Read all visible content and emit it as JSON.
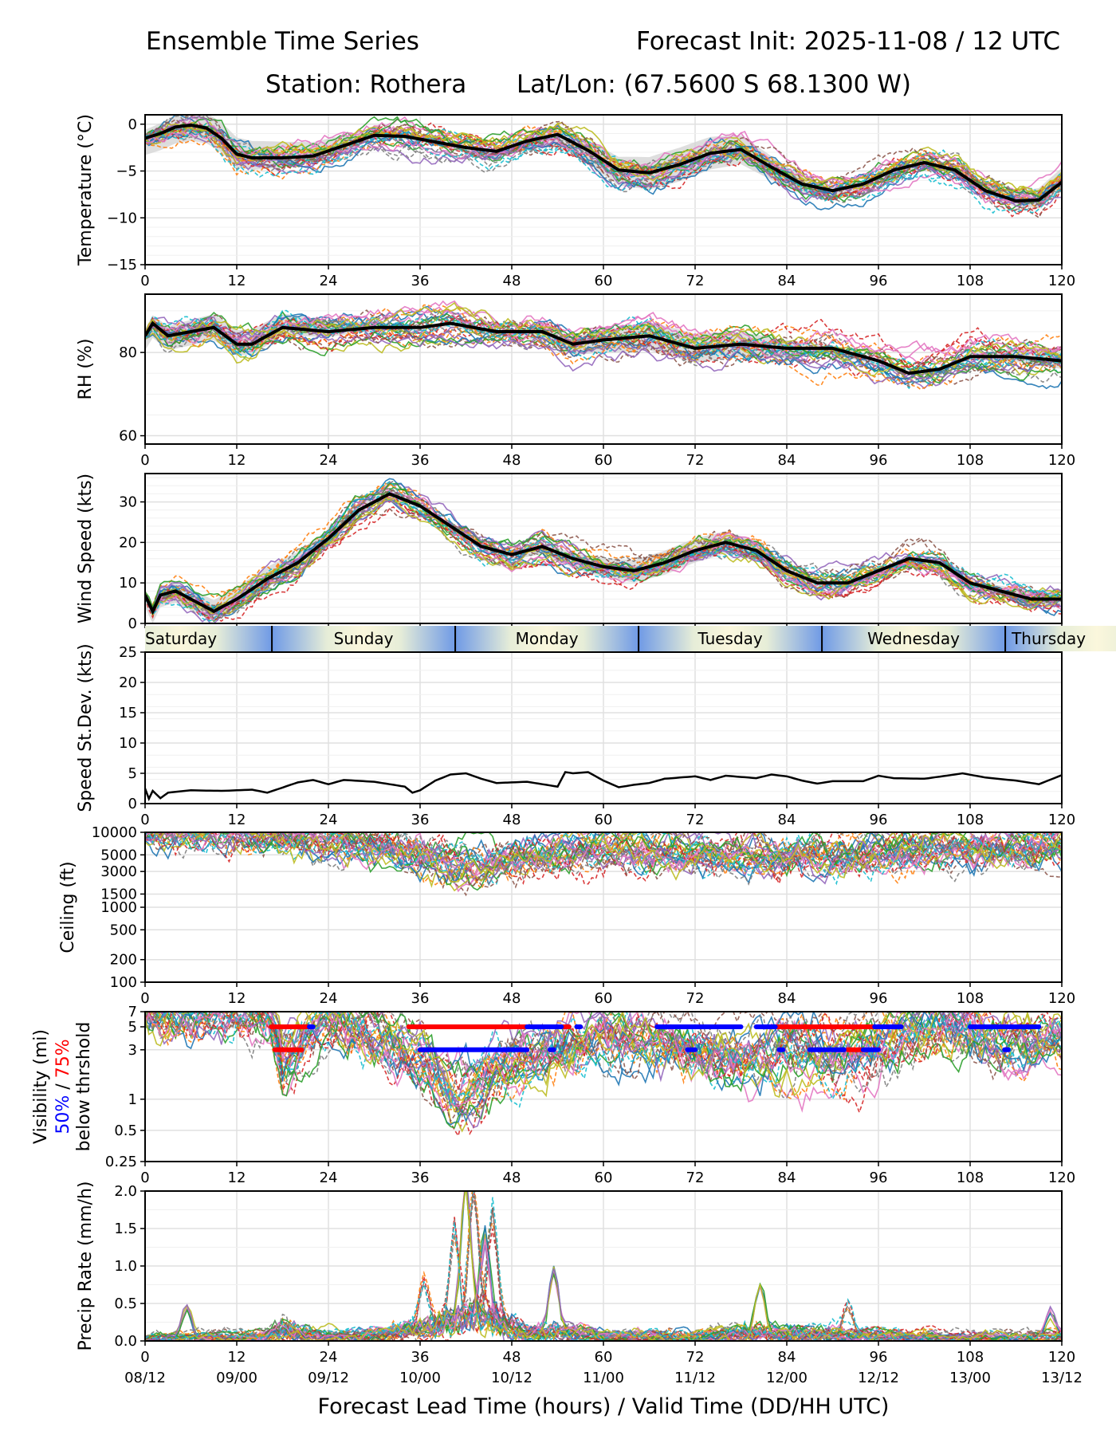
{
  "header": {
    "left_title": "Ensemble Time Series",
    "right_title": "Forecast Init: 2025-11-08 / 12 UTC",
    "station": "Station: Rothera",
    "latlon": "Lat/Lon: (67.5600 S 68.1300 W)"
  },
  "colors": {
    "members": [
      "#1f77b4",
      "#ff7f0e",
      "#2ca02c",
      "#d62728",
      "#9467bd",
      "#8c564b",
      "#e377c2",
      "#7f7f7f",
      "#bcbd22",
      "#17becf"
    ],
    "mean": "#000000",
    "spread": "#d3d3d3",
    "vis_50": "#0000ff",
    "vis_75": "#ff0000"
  },
  "chart_data": {
    "type": "line",
    "x_label": "Forecast Lead Time (hours) / Valid Time (DD/HH UTC)",
    "x_range": [
      0,
      120
    ],
    "x_ticks": [
      0,
      12,
      24,
      36,
      48,
      60,
      72,
      84,
      96,
      108,
      120
    ],
    "x_valid_labels": [
      "08/12",
      "09/00",
      "09/12",
      "10/00",
      "10/12",
      "11/00",
      "11/12",
      "12/00",
      "12/12",
      "13/00",
      "13/12"
    ],
    "members": 30,
    "day_band": {
      "days": [
        "Saturday",
        "Sunday",
        "Monday",
        "Tuesday",
        "Wednesday",
        "Thursday"
      ],
      "boundaries_hours": [
        16.6,
        40.6,
        64.6,
        88.6,
        112.6
      ]
    },
    "panels": [
      {
        "id": "temperature",
        "ylabel": "Temperature (°C)",
        "ylim": [
          -15,
          1
        ],
        "yscale": "linear",
        "yticks": [
          0,
          -5,
          -10,
          -15
        ],
        "ytick_labels": [
          "0",
          "−5",
          "−10",
          "−15"
        ],
        "mean": [
          [
            0,
            -1.5
          ],
          [
            2,
            -1
          ],
          [
            4,
            -0.3
          ],
          [
            6,
            -0.1
          ],
          [
            8,
            -0.4
          ],
          [
            10,
            -1.5
          ],
          [
            12,
            -3.2
          ],
          [
            14,
            -3.6
          ],
          [
            18,
            -3.6
          ],
          [
            22,
            -3.4
          ],
          [
            26,
            -2.3
          ],
          [
            30,
            -1.2
          ],
          [
            34,
            -1.3
          ],
          [
            38,
            -1.9
          ],
          [
            42,
            -2.5
          ],
          [
            46,
            -2.9
          ],
          [
            50,
            -1.8
          ],
          [
            54,
            -1.1
          ],
          [
            58,
            -2.8
          ],
          [
            62,
            -4.9
          ],
          [
            66,
            -5.2
          ],
          [
            70,
            -4.3
          ],
          [
            74,
            -3.1
          ],
          [
            78,
            -2.7
          ],
          [
            82,
            -4.6
          ],
          [
            86,
            -6.4
          ],
          [
            90,
            -7.1
          ],
          [
            94,
            -6.4
          ],
          [
            98,
            -4.9
          ],
          [
            102,
            -4.1
          ],
          [
            106,
            -4.9
          ],
          [
            110,
            -7.1
          ],
          [
            114,
            -8.2
          ],
          [
            117,
            -8.1
          ],
          [
            120,
            -6.2
          ]
        ],
        "spread": 1.8,
        "member_noise": 1.6
      },
      {
        "id": "rh",
        "ylabel": "RH (%)",
        "ylim": [
          58,
          94
        ],
        "yscale": "linear",
        "yticks": [
          60,
          80
        ],
        "ytick_labels": [
          "60",
          "80"
        ],
        "mean": [
          [
            0,
            84
          ],
          [
            1,
            87
          ],
          [
            3,
            84
          ],
          [
            6,
            85
          ],
          [
            9,
            86
          ],
          [
            12,
            82
          ],
          [
            14,
            82
          ],
          [
            18,
            86
          ],
          [
            24,
            85
          ],
          [
            30,
            86
          ],
          [
            36,
            86
          ],
          [
            40,
            87
          ],
          [
            46,
            85
          ],
          [
            52,
            85
          ],
          [
            56,
            82
          ],
          [
            60,
            83
          ],
          [
            66,
            84
          ],
          [
            72,
            81
          ],
          [
            78,
            82
          ],
          [
            84,
            81
          ],
          [
            90,
            81
          ],
          [
            96,
            78
          ],
          [
            100,
            75
          ],
          [
            104,
            76
          ],
          [
            108,
            79
          ],
          [
            114,
            79
          ],
          [
            120,
            78
          ]
        ],
        "spread": 3.5,
        "member_noise": 4
      },
      {
        "id": "wind",
        "ylabel": "Wind Speed (kts)",
        "ylim": [
          0,
          37
        ],
        "yscale": "linear",
        "yticks": [
          0,
          10,
          20,
          30
        ],
        "ytick_labels": [
          "0",
          "10",
          "20",
          "30"
        ],
        "mean": [
          [
            0,
            7
          ],
          [
            1,
            3
          ],
          [
            2,
            7
          ],
          [
            4,
            8
          ],
          [
            6,
            6
          ],
          [
            8,
            4
          ],
          [
            9,
            3
          ],
          [
            12,
            6
          ],
          [
            16,
            11
          ],
          [
            20,
            15
          ],
          [
            24,
            21
          ],
          [
            28,
            28
          ],
          [
            32,
            32
          ],
          [
            36,
            29
          ],
          [
            40,
            24
          ],
          [
            44,
            19
          ],
          [
            48,
            17
          ],
          [
            52,
            19
          ],
          [
            56,
            16
          ],
          [
            60,
            14
          ],
          [
            64,
            13
          ],
          [
            68,
            15
          ],
          [
            72,
            18
          ],
          [
            76,
            20
          ],
          [
            80,
            18
          ],
          [
            84,
            13
          ],
          [
            88,
            10
          ],
          [
            92,
            10
          ],
          [
            96,
            13
          ],
          [
            100,
            16
          ],
          [
            104,
            15
          ],
          [
            108,
            10
          ],
          [
            112,
            8
          ],
          [
            116,
            6
          ],
          [
            120,
            6
          ]
        ],
        "spread": 3,
        "member_noise": 3.5
      },
      {
        "id": "speed_stdev",
        "ylabel": "Speed St.Dev. (kts)",
        "ylim": [
          0,
          25
        ],
        "yscale": "linear",
        "yticks": [
          0,
          5,
          10,
          15,
          20,
          25
        ],
        "ytick_labels": [
          "0",
          "5",
          "10",
          "15",
          "20",
          "25"
        ],
        "mean": [
          [
            0,
            2.5
          ],
          [
            0.5,
            0.8
          ],
          [
            1,
            2.1
          ],
          [
            2,
            0.9
          ],
          [
            3,
            1.8
          ],
          [
            6,
            2.2
          ],
          [
            10,
            2.1
          ],
          [
            14,
            2.3
          ],
          [
            16,
            1.8
          ],
          [
            20,
            3.5
          ],
          [
            22,
            3.9
          ],
          [
            24,
            3.2
          ],
          [
            26,
            3.9
          ],
          [
            30,
            3.6
          ],
          [
            34,
            2.8
          ],
          [
            35,
            1.8
          ],
          [
            36,
            2.2
          ],
          [
            38,
            3.8
          ],
          [
            40,
            4.8
          ],
          [
            42,
            5
          ],
          [
            44,
            4.1
          ],
          [
            46,
            3.4
          ],
          [
            50,
            3.6
          ],
          [
            54,
            2.8
          ],
          [
            55,
            5.2
          ],
          [
            56,
            5
          ],
          [
            58,
            5.2
          ],
          [
            60,
            3.8
          ],
          [
            62,
            2.7
          ],
          [
            64,
            3.1
          ],
          [
            66,
            3.4
          ],
          [
            68,
            4.1
          ],
          [
            72,
            4.5
          ],
          [
            74,
            3.9
          ],
          [
            76,
            4.6
          ],
          [
            80,
            4.2
          ],
          [
            82,
            4.8
          ],
          [
            84,
            4.5
          ],
          [
            86,
            3.8
          ],
          [
            88,
            3.3
          ],
          [
            90,
            3.7
          ],
          [
            94,
            3.7
          ],
          [
            96,
            4.6
          ],
          [
            98,
            4.2
          ],
          [
            102,
            4.1
          ],
          [
            106,
            4.8
          ],
          [
            107,
            5
          ],
          [
            110,
            4.3
          ],
          [
            114,
            3.8
          ],
          [
            117,
            3.2
          ],
          [
            120,
            4.7
          ]
        ]
      },
      {
        "id": "ceiling",
        "ylabel": "Ceiling (ft)",
        "ylim": [
          100,
          10000
        ],
        "yscale": "log",
        "yticks": [
          10000,
          5000,
          3000,
          1500,
          1000,
          500,
          200,
          100
        ],
        "ytick_labels": [
          "10000",
          "5000",
          "3000",
          "1500",
          "1000",
          "500",
          "200",
          "100"
        ],
        "mean": [
          [
            0,
            10000
          ],
          [
            14,
            10000
          ],
          [
            18,
            8000
          ],
          [
            24,
            7000
          ],
          [
            30,
            6500
          ],
          [
            36,
            5000
          ],
          [
            40,
            3800
          ],
          [
            44,
            3600
          ],
          [
            48,
            4300
          ],
          [
            54,
            5200
          ],
          [
            60,
            5800
          ],
          [
            66,
            5400
          ],
          [
            72,
            5000
          ],
          [
            78,
            4800
          ],
          [
            84,
            4900
          ],
          [
            90,
            5000
          ],
          [
            96,
            5200
          ],
          [
            104,
            5900
          ],
          [
            112,
            6400
          ],
          [
            120,
            6700
          ]
        ]
      },
      {
        "id": "visibility",
        "ylabel": "Visibility (mi)",
        "ylabel_50": "50%",
        "ylabel_sep": "/",
        "ylabel_75": "75%",
        "ylabel_sub": "below thrshold",
        "ylim": [
          0.25,
          7
        ],
        "yscale": "log",
        "yticks": [
          7,
          5,
          3,
          1,
          0.5,
          0.25
        ],
        "ytick_labels": [
          "7",
          "5",
          "3",
          "1",
          "0.5",
          "0.25"
        ],
        "mean": [
          [
            0,
            7
          ],
          [
            16,
            7
          ],
          [
            18,
            2.2
          ],
          [
            20,
            3
          ],
          [
            24,
            6
          ],
          [
            30,
            4
          ],
          [
            36,
            2.5
          ],
          [
            40,
            1.1
          ],
          [
            44,
            1.3
          ],
          [
            48,
            2
          ],
          [
            52,
            2.4
          ],
          [
            56,
            3.5
          ],
          [
            60,
            4
          ],
          [
            66,
            3.5
          ],
          [
            72,
            2.8
          ],
          [
            78,
            2.5
          ],
          [
            84,
            2.8
          ],
          [
            90,
            2.6
          ],
          [
            96,
            3.5
          ],
          [
            104,
            5
          ],
          [
            108,
            4.5
          ],
          [
            112,
            3
          ],
          [
            120,
            3.6
          ]
        ],
        "threshold_markers": [
          {
            "threshold": 5,
            "pct": "75%",
            "color": "red",
            "segments": [
              [
                16.5,
                21.5
              ],
              [
                34.5,
                55.5
              ],
              [
                82.5,
                95.5
              ]
            ]
          },
          {
            "threshold": 5,
            "pct": "50%",
            "color": "blue",
            "segments": [
              [
                21.5,
                22
              ],
              [
                50,
                54.5
              ],
              [
                56.5,
                57
              ],
              [
                67,
                78
              ],
              [
                80,
                82.5
              ],
              [
                95.5,
                99
              ],
              [
                108,
                117
              ]
            ]
          },
          {
            "threshold": 3,
            "pct": "75%",
            "color": "red",
            "segments": [
              [
                17,
                20.5
              ],
              [
                36,
                38
              ],
              [
                92,
                94
              ]
            ]
          },
          {
            "threshold": 3,
            "pct": "50%",
            "color": "blue",
            "segments": [
              [
                36,
                50
              ],
              [
                53,
                53.5
              ],
              [
                71,
                72
              ],
              [
                83,
                83.5
              ],
              [
                87,
                91.5
              ],
              [
                94,
                96
              ],
              [
                112.5,
                113
              ]
            ]
          }
        ]
      },
      {
        "id": "precip",
        "ylabel": "Precip Rate (mm/h)",
        "ylim": [
          0,
          2
        ],
        "yscale": "linear",
        "yticks": [
          0,
          0.5,
          1,
          1.5,
          2
        ],
        "ytick_labels": [
          "0.0",
          "0.5",
          "1.0",
          "1.5",
          "2.0"
        ],
        "mean": [
          [
            0,
            0.02
          ],
          [
            16,
            0.05
          ],
          [
            18,
            0.15
          ],
          [
            20,
            0.1
          ],
          [
            24,
            0.05
          ],
          [
            32,
            0.08
          ],
          [
            36,
            0.15
          ],
          [
            40,
            0.25
          ],
          [
            42,
            0.3
          ],
          [
            44,
            0.35
          ],
          [
            46,
            0.25
          ],
          [
            50,
            0.1
          ],
          [
            54,
            0.12
          ],
          [
            60,
            0.05
          ],
          [
            72,
            0.06
          ],
          [
            80,
            0.12
          ],
          [
            84,
            0.1
          ],
          [
            90,
            0.1
          ],
          [
            96,
            0.06
          ],
          [
            108,
            0.04
          ],
          [
            120,
            0.05
          ]
        ],
        "peaks": [
          [
            5.5,
            0.38
          ],
          [
            40.5,
            1.23
          ],
          [
            42,
            1.8
          ],
          [
            43,
            1.7
          ],
          [
            44.5,
            1.05
          ],
          [
            45.5,
            1.45
          ],
          [
            53.5,
            0.8
          ],
          [
            36.5,
            0.65
          ],
          [
            80.5,
            0.68
          ],
          [
            92,
            0.42
          ],
          [
            118.5,
            0.3
          ]
        ]
      }
    ]
  }
}
